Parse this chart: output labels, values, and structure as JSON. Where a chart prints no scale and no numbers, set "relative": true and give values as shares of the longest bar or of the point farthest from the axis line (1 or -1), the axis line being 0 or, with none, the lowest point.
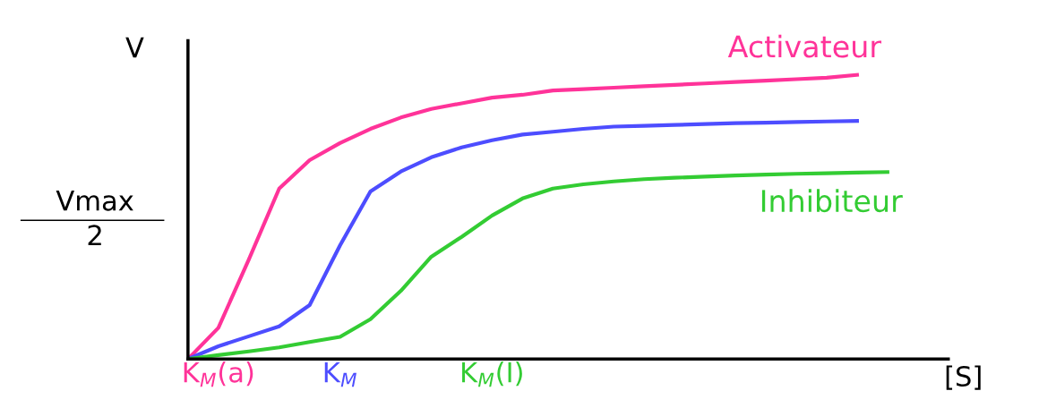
{
  "chart_data": {
    "type": "line",
    "relative": true,
    "ylabel": "V",
    "xlabel": "[S]",
    "categories": [
      null,
      "K$_{M}$(a)",
      null,
      null,
      null,
      "K$_{M}$",
      null,
      null,
      null,
      null,
      "K$_{M}$(I)",
      null,
      null,
      null,
      null,
      null,
      null,
      null,
      null,
      null,
      null,
      null,
      null,
      null,
      null
    ],
    "annotations": [
      "Vmax",
      "2"
    ],
    "grid": false,
    "legend": false,
    "marker": "none",
    "line_style": "solid",
    "series": [
      {
        "name": "Activateur",
        "color": "#ff3399",
        "values": [
          0,
          0.11,
          0.35,
          0.6,
          0.7,
          0.76,
          0.81,
          0.85,
          0.88,
          0.9,
          0.92,
          0.93,
          0.945,
          0.95,
          0.955,
          0.96,
          0.965,
          0.97,
          0.975,
          0.98,
          0.985,
          0.99,
          1.0,
          null,
          null
        ]
      },
      {
        "color": "#4d4dff",
        "values": [
          0,
          0.045,
          0.08,
          0.115,
          0.19,
          0.4,
          0.59,
          0.66,
          0.71,
          0.745,
          0.77,
          0.79,
          0.8,
          0.81,
          0.818,
          0.821,
          0.824,
          0.827,
          0.83,
          0.832,
          0.834,
          0.836,
          0.838,
          null,
          null
        ]
      },
      {
        "name": "Inhibiteur",
        "color": "#33cc33",
        "values": [
          0,
          0.014,
          0.027,
          0.041,
          0.06,
          0.078,
          0.14,
          0.24,
          0.36,
          0.43,
          0.505,
          0.565,
          0.6,
          0.615,
          0.625,
          0.633,
          0.638,
          0.642,
          0.646,
          0.649,
          0.652,
          0.654,
          0.656,
          0.658,
          null
        ]
      }
    ]
  }
}
